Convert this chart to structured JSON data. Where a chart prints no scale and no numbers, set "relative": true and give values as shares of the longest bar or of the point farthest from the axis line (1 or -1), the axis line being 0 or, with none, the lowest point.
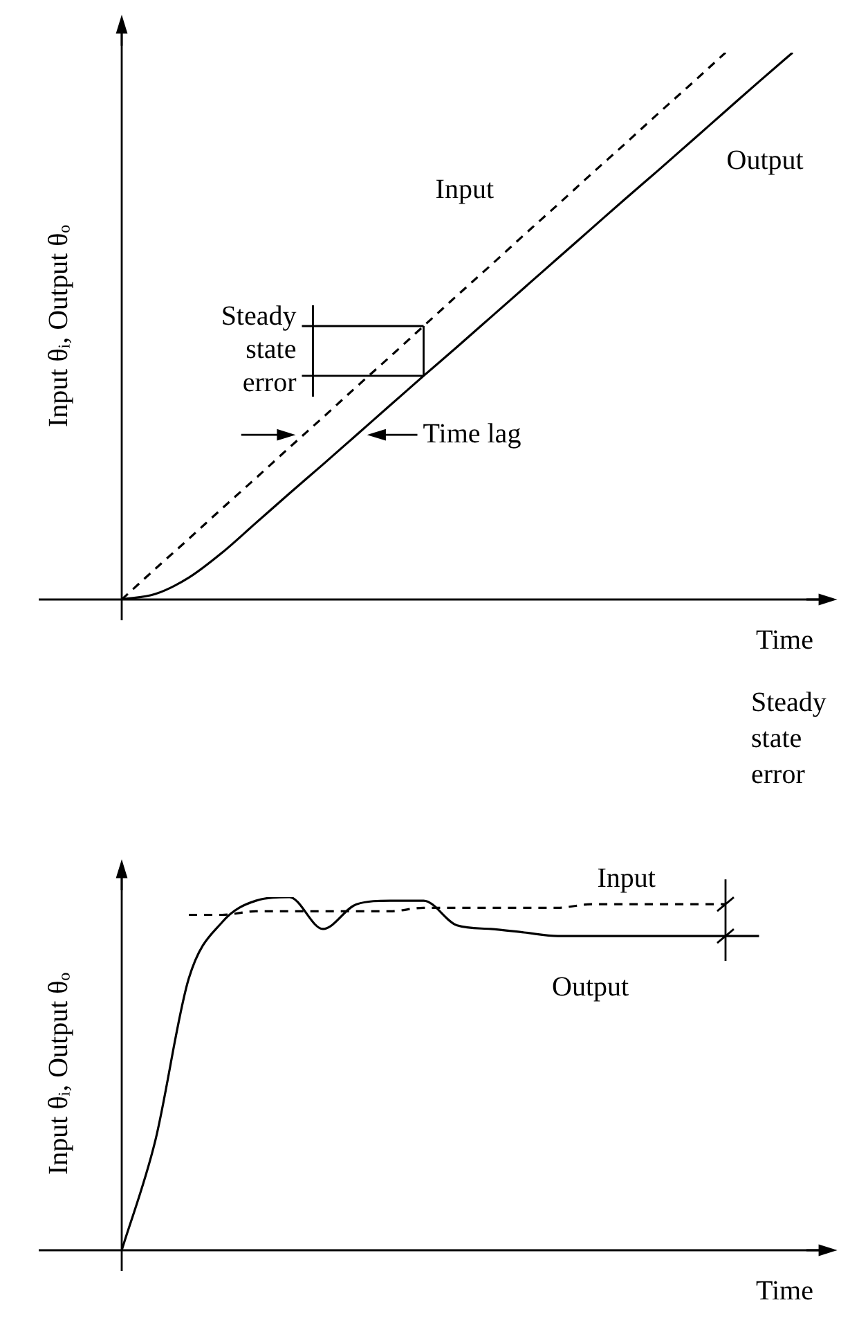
{
  "chart_data": [
    {
      "type": "line",
      "relative": true,
      "xlabel": "Time",
      "ylabel": "Input θᵢ, Output θₒ",
      "categories": [
        null,
        null,
        null,
        null,
        null,
        null,
        null,
        null,
        null,
        null,
        null,
        null,
        null,
        null,
        null,
        null,
        null,
        null,
        null,
        null,
        null
      ],
      "line_style": "solid",
      "series": [
        {
          "name": "Input",
          "color": "#000000",
          "line_style": "dashed",
          "values": [
            0,
            0.056,
            0.111,
            0.167,
            0.222,
            0.278,
            0.333,
            0.389,
            0.444,
            0.5,
            0.556,
            0.611,
            0.667,
            0.722,
            0.778,
            0.833,
            0.889,
            0.944,
            1.0,
            null,
            null
          ]
        },
        {
          "name": "Output",
          "color": "#000000",
          "values": [
            0,
            0.01,
            0.04,
            0.086,
            0.14,
            0.194,
            0.247,
            0.301,
            0.355,
            0.409,
            0.462,
            0.516,
            0.57,
            0.624,
            0.678,
            0.732,
            0.785,
            0.839,
            0.893,
            0.947,
            1.0
          ]
        }
      ],
      "annotations": [
        "Steady state error",
        "Time lag"
      ]
    },
    {
      "type": "line",
      "relative": true,
      "xlabel": "Time",
      "ylabel": "Input θᵢ, Output θₒ",
      "categories": [
        null,
        null,
        null,
        null,
        null,
        null,
        null,
        null,
        null,
        null,
        null,
        null,
        null,
        null,
        null,
        null,
        null,
        null,
        null,
        null,
        null
      ],
      "line_style": "solid",
      "series": [
        {
          "name": "Input",
          "color": "#000000",
          "line_style": "dashed",
          "values": [
            null,
            null,
            0.95,
            0.95,
            0.96,
            0.96,
            0.96,
            0.96,
            0.96,
            0.97,
            0.97,
            0.97,
            0.97,
            0.97,
            0.98,
            0.98,
            0.98,
            0.98,
            0.98,
            null,
            null
          ]
        },
        {
          "name": "Output",
          "color": "#000000",
          "values": [
            0,
            0.31,
            0.77,
            0.93,
            0.99,
            1.0,
            0.91,
            0.98,
            0.99,
            0.99,
            0.92,
            0.91,
            0.9,
            0.89,
            0.89,
            0.89,
            0.89,
            0.89,
            0.89,
            0.89,
            null
          ]
        }
      ],
      "annotations": [
        "Steady state error"
      ]
    }
  ]
}
